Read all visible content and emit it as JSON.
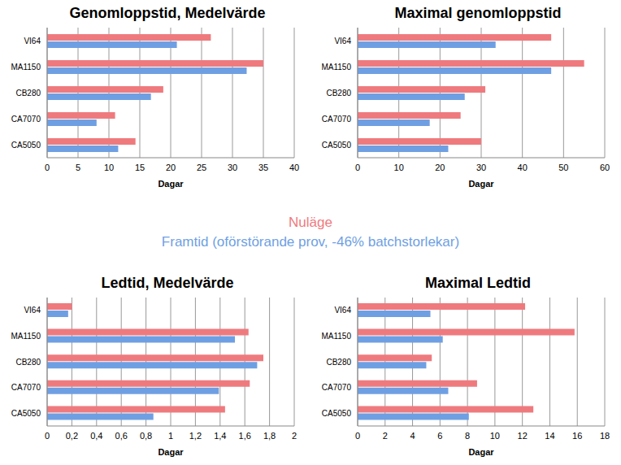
{
  "chart_data": [
    {
      "type": "bar",
      "orientation": "horizontal",
      "title": "Genomloppstid, Medelvärde",
      "xlabel": "Dagar",
      "categories": [
        "VI64",
        "MA1150",
        "CB280",
        "CA7070",
        "CA5050"
      ],
      "series": [
        {
          "name": "Nuläge",
          "color": "#ef7a7e",
          "values": [
            26.5,
            35,
            18.8,
            11,
            14.3
          ]
        },
        {
          "name": "Framtid (oförstörande prov, -46% batchstorlekar)",
          "color": "#6f9fe3",
          "values": [
            21,
            32.3,
            16.8,
            8,
            11.5
          ]
        }
      ],
      "xlim": [
        0,
        40
      ],
      "xticks": [
        0,
        5,
        10,
        15,
        20,
        25,
        30,
        35,
        40
      ],
      "grid": true
    },
    {
      "type": "bar",
      "orientation": "horizontal",
      "title": "Maximal genomloppstid",
      "xlabel": "Dagar",
      "categories": [
        "VI64",
        "MA1150",
        "CB280",
        "CA7070",
        "CA5050"
      ],
      "series": [
        {
          "name": "Nuläge",
          "color": "#ef7a7e",
          "values": [
            47,
            55,
            31,
            25,
            30
          ]
        },
        {
          "name": "Framtid (oförstörande prov, -46% batchstorlekar)",
          "color": "#6f9fe3",
          "values": [
            33.5,
            47,
            26,
            17.5,
            22
          ]
        }
      ],
      "xlim": [
        0,
        60
      ],
      "xticks": [
        0,
        10,
        20,
        30,
        40,
        50,
        60
      ],
      "grid": true
    },
    {
      "type": "bar",
      "orientation": "horizontal",
      "title": "Ledtid, Medelvärde",
      "xlabel": "Dagar",
      "categories": [
        "VI64",
        "MA1150",
        "CB280",
        "CA7070",
        "CA5050"
      ],
      "series": [
        {
          "name": "Nuläge",
          "color": "#ef7a7e",
          "values": [
            0.2,
            1.63,
            1.75,
            1.64,
            1.44
          ]
        },
        {
          "name": "Framtid (oförstörande prov, -46% batchstorlekar)",
          "color": "#6f9fe3",
          "values": [
            0.17,
            1.52,
            1.7,
            1.39,
            0.86
          ]
        }
      ],
      "xlim": [
        0,
        2
      ],
      "xticks": [
        0,
        {
          "value": 0.2,
          "label": "0,2"
        },
        {
          "value": 0.4,
          "label": "0,4"
        },
        {
          "value": 0.6,
          "label": "0,6"
        },
        {
          "value": 0.8,
          "label": "0,8"
        },
        1,
        {
          "value": 1.2,
          "label": "1,2"
        },
        {
          "value": 1.4,
          "label": "1,4"
        },
        {
          "value": 1.6,
          "label": "1,6"
        },
        {
          "value": 1.8,
          "label": "1,8"
        },
        2
      ],
      "grid": true
    },
    {
      "type": "bar",
      "orientation": "horizontal",
      "title": "Maximal Ledtid",
      "xlabel": "Dagar",
      "categories": [
        "VI64",
        "MA1150",
        "CB280",
        "CA7070",
        "CA5050"
      ],
      "series": [
        {
          "name": "Nuläge",
          "color": "#ef7a7e",
          "values": [
            12.2,
            15.8,
            5.4,
            8.7,
            12.8
          ]
        },
        {
          "name": "Framtid (oförstörande prov, -46% batchstorlekar)",
          "color": "#6f9fe3",
          "values": [
            5.3,
            6.2,
            5,
            6.6,
            8.1
          ]
        }
      ],
      "xlim": [
        0,
        18
      ],
      "xticks": [
        0,
        2,
        4,
        6,
        8,
        10,
        12,
        14,
        16,
        18
      ],
      "grid": true
    }
  ]
}
